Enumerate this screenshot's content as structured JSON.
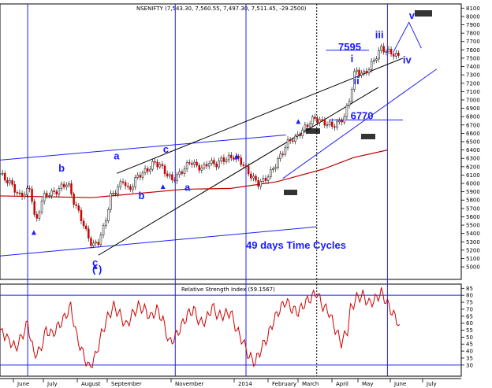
{
  "chart_data": [
    {
      "type": "candlestick",
      "title": "NSENIFTY (7,543.30, 7,560.55, 7,497.30, 7,511.45, -29.2500)",
      "ylim": [
        4850,
        8150
      ],
      "y_ticks": [
        5000,
        5100,
        5200,
        5300,
        5400,
        5500,
        5600,
        5700,
        5800,
        5900,
        6000,
        6100,
        6200,
        6300,
        6400,
        6500,
        6600,
        6700,
        6800,
        6900,
        7000,
        7100,
        7200,
        7300,
        7400,
        7500,
        7600,
        7700,
        7800,
        7900,
        8000,
        8100
      ],
      "x_ticks": [
        "June",
        "July",
        "August",
        "September",
        "November",
        "2014",
        "February",
        "March",
        "April",
        "May",
        "June",
        "July"
      ],
      "close_points": [
        [
          0,
          6120
        ],
        [
          2,
          6040
        ],
        [
          4,
          5980
        ],
        [
          6,
          5850
        ],
        [
          8,
          5880
        ],
        [
          10,
          5950
        ],
        [
          11,
          5620
        ],
        [
          12,
          5560
        ],
        [
          13,
          5720
        ],
        [
          14,
          5840
        ],
        [
          16,
          5880
        ],
        [
          18,
          5890
        ],
        [
          20,
          5960
        ],
        [
          22,
          6010
        ],
        [
          24,
          5780
        ],
        [
          26,
          5620
        ],
        [
          28,
          5420
        ],
        [
          30,
          5250
        ],
        [
          32,
          5300
        ],
        [
          34,
          5500
        ],
        [
          36,
          5850
        ],
        [
          38,
          5920
        ],
        [
          40,
          6040
        ],
        [
          42,
          5900
        ],
        [
          44,
          6050
        ],
        [
          46,
          6120
        ],
        [
          48,
          6160
        ],
        [
          50,
          6250
        ],
        [
          52,
          6220
        ],
        [
          54,
          6120
        ],
        [
          56,
          6040
        ],
        [
          58,
          6100
        ],
        [
          60,
          6180
        ],
        [
          62,
          6270
        ],
        [
          64,
          6200
        ],
        [
          66,
          6180
        ],
        [
          68,
          6260
        ],
        [
          70,
          6220
        ],
        [
          72,
          6280
        ],
        [
          74,
          6300
        ],
        [
          76,
          6320
        ],
        [
          78,
          6280
        ],
        [
          80,
          6170
        ],
        [
          82,
          6070
        ],
        [
          84,
          6000
        ],
        [
          86,
          6040
        ],
        [
          88,
          6130
        ],
        [
          90,
          6250
        ],
        [
          92,
          6380
        ],
        [
          94,
          6520
        ],
        [
          96,
          6540
        ],
        [
          98,
          6620
        ],
        [
          100,
          6700
        ],
        [
          102,
          6780
        ],
        [
          104,
          6750
        ],
        [
          106,
          6720
        ],
        [
          108,
          6690
        ],
        [
          110,
          6720
        ],
        [
          112,
          6800
        ],
        [
          114,
          7050
        ],
        [
          115,
          7300
        ],
        [
          116,
          7350
        ],
        [
          118,
          7300
        ],
        [
          120,
          7380
        ],
        [
          122,
          7500
        ],
        [
          124,
          7620
        ],
        [
          126,
          7580
        ],
        [
          128,
          7550
        ],
        [
          130,
          7511
        ]
      ],
      "price_ma": [
        [
          0,
          5850
        ],
        [
          15,
          5840
        ],
        [
          30,
          5830
        ],
        [
          45,
          5880
        ],
        [
          60,
          5930
        ],
        [
          75,
          5940
        ],
        [
          90,
          6020
        ],
        [
          105,
          6170
        ],
        [
          115,
          6310
        ],
        [
          126,
          6400
        ]
      ],
      "x_domain": [
        0,
        150
      ],
      "annotations": [
        {
          "text": "7595",
          "x": 110,
          "y": 7595
        },
        {
          "text": "6770",
          "x": 114,
          "y": 6770
        },
        {
          "text": "49 days Time Cycles",
          "x": 80,
          "y": 5220
        },
        {
          "text": "a",
          "x": 37,
          "y": 6290
        },
        {
          "text": "b",
          "x": 19,
          "y": 6140
        },
        {
          "text": "b",
          "x": 45,
          "y": 5810
        },
        {
          "text": "c",
          "x": 53,
          "y": 6370
        },
        {
          "text": "a",
          "x": 60,
          "y": 5910
        },
        {
          "text": "c",
          "x": 30,
          "y": 5010
        },
        {
          "text": "( )",
          "x": 30,
          "y": 4930
        },
        {
          "text": "i",
          "x": 114,
          "y": 7450
        },
        {
          "text": "ii",
          "x": 115,
          "y": 7190
        },
        {
          "text": "iii",
          "x": 122,
          "y": 7740
        },
        {
          "text": "iv",
          "x": 131,
          "y": 7440
        },
        {
          "text": "v",
          "x": 133,
          "y": 7970
        }
      ],
      "cycle_x": [
        9,
        57,
        80,
        126
      ],
      "dotted_x": [
        103
      ],
      "trend_lines": [
        {
          "x1": 0,
          "y1": 6280,
          "x2": 93,
          "y2": 6580
        },
        {
          "x1": 0,
          "y1": 5130,
          "x2": 103,
          "y2": 5480
        },
        {
          "x1": 38,
          "y1": 6120,
          "x2": 131,
          "y2": 7500
        },
        {
          "x1": 32,
          "y1": 5140,
          "x2": 123,
          "y2": 7150
        },
        {
          "x1": 92,
          "y1": 6060,
          "x2": 142,
          "y2": 7370
        },
        {
          "x1": 107,
          "y1": 6760,
          "x2": 131,
          "y2": 6760
        },
        {
          "x1": 106,
          "y1": 7595,
          "x2": 120,
          "y2": 7595
        }
      ],
      "wave_v": [
        [
          128,
          7580
        ],
        [
          133,
          7930
        ],
        [
          137,
          7620
        ]
      ]
    },
    {
      "type": "line",
      "title": "Relative Strength Index (59.1567)",
      "ylim": [
        22,
        88
      ],
      "y_ticks": [
        30,
        35,
        40,
        45,
        50,
        55,
        60,
        65,
        70,
        75,
        80,
        85
      ],
      "levels": [
        80,
        30
      ],
      "values": [
        [
          0,
          55
        ],
        [
          3,
          48
        ],
        [
          5,
          42
        ],
        [
          7,
          50
        ],
        [
          9,
          60
        ],
        [
          11,
          38
        ],
        [
          13,
          40
        ],
        [
          15,
          55
        ],
        [
          17,
          52
        ],
        [
          19,
          58
        ],
        [
          21,
          64
        ],
        [
          23,
          72
        ],
        [
          25,
          50
        ],
        [
          27,
          38
        ],
        [
          29,
          28
        ],
        [
          31,
          36
        ],
        [
          33,
          52
        ],
        [
          35,
          64
        ],
        [
          37,
          72
        ],
        [
          39,
          66
        ],
        [
          41,
          58
        ],
        [
          43,
          66
        ],
        [
          45,
          72
        ],
        [
          47,
          70
        ],
        [
          49,
          64
        ],
        [
          51,
          70
        ],
        [
          53,
          62
        ],
        [
          55,
          46
        ],
        [
          57,
          50
        ],
        [
          59,
          58
        ],
        [
          61,
          66
        ],
        [
          63,
          70
        ],
        [
          65,
          60
        ],
        [
          67,
          62
        ],
        [
          69,
          72
        ],
        [
          71,
          65
        ],
        [
          73,
          66
        ],
        [
          75,
          68
        ],
        [
          77,
          55
        ],
        [
          79,
          47
        ],
        [
          81,
          36
        ],
        [
          83,
          32
        ],
        [
          85,
          42
        ],
        [
          87,
          50
        ],
        [
          89,
          62
        ],
        [
          91,
          70
        ],
        [
          93,
          76
        ],
        [
          95,
          70
        ],
        [
          97,
          68
        ],
        [
          99,
          74
        ],
        [
          101,
          78
        ],
        [
          103,
          82
        ],
        [
          105,
          72
        ],
        [
          107,
          68
        ],
        [
          109,
          56
        ],
        [
          111,
          46
        ],
        [
          113,
          55
        ],
        [
          114,
          70
        ],
        [
          116,
          78
        ],
        [
          118,
          80
        ],
        [
          120,
          74
        ],
        [
          122,
          77
        ],
        [
          124,
          82
        ],
        [
          126,
          74
        ],
        [
          128,
          66
        ],
        [
          130,
          59
        ]
      ],
      "x_domain": [
        0,
        150
      ]
    }
  ]
}
